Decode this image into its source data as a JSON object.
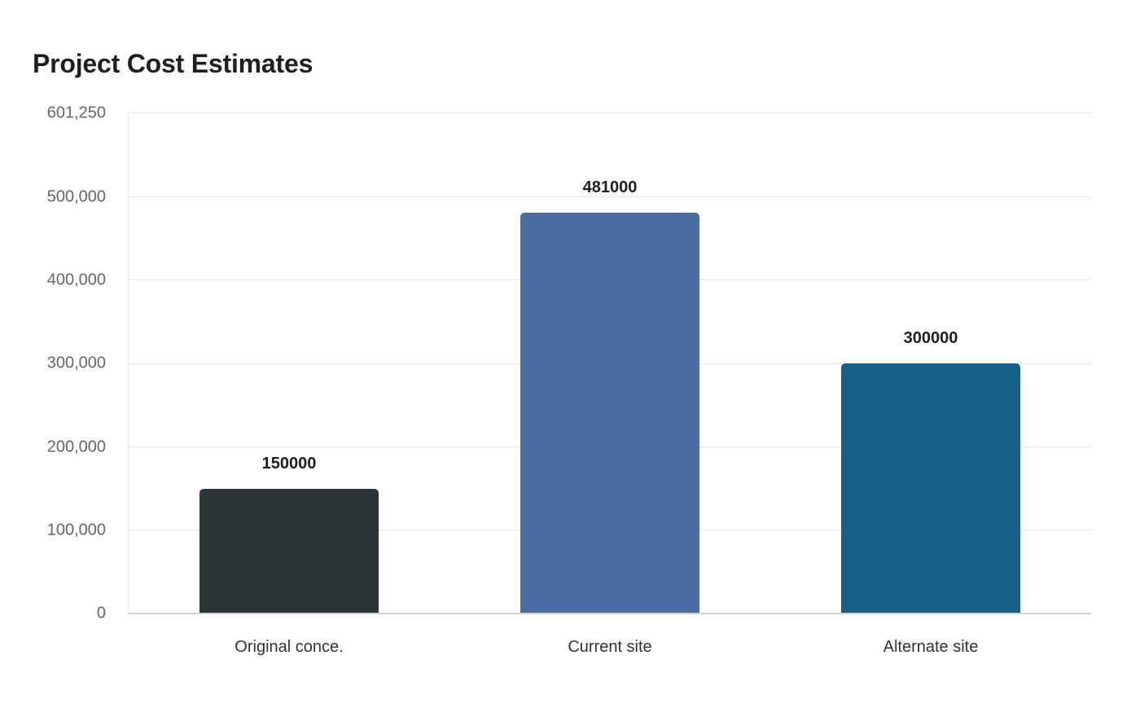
{
  "chart_data": {
    "type": "bar",
    "title": "Project Cost Estimates",
    "xlabel": "",
    "ylabel": "",
    "categories": [
      "Original conce.",
      "Current site",
      "Alternate site"
    ],
    "values": [
      150000,
      481000,
      300000
    ],
    "value_labels": [
      "150000",
      "481000",
      "300000"
    ],
    "colors": [
      "#2d3436",
      "#4a6ea4",
      "#186088"
    ],
    "ylim": [
      0,
      601250
    ],
    "yticks": [
      0,
      100000,
      200000,
      300000,
      400000,
      500000,
      601250
    ],
    "ytick_labels": [
      "0",
      "100,000",
      "200,000",
      "300,000",
      "400,000",
      "500,000",
      "601,250"
    ],
    "grid": true,
    "legend": "none"
  }
}
